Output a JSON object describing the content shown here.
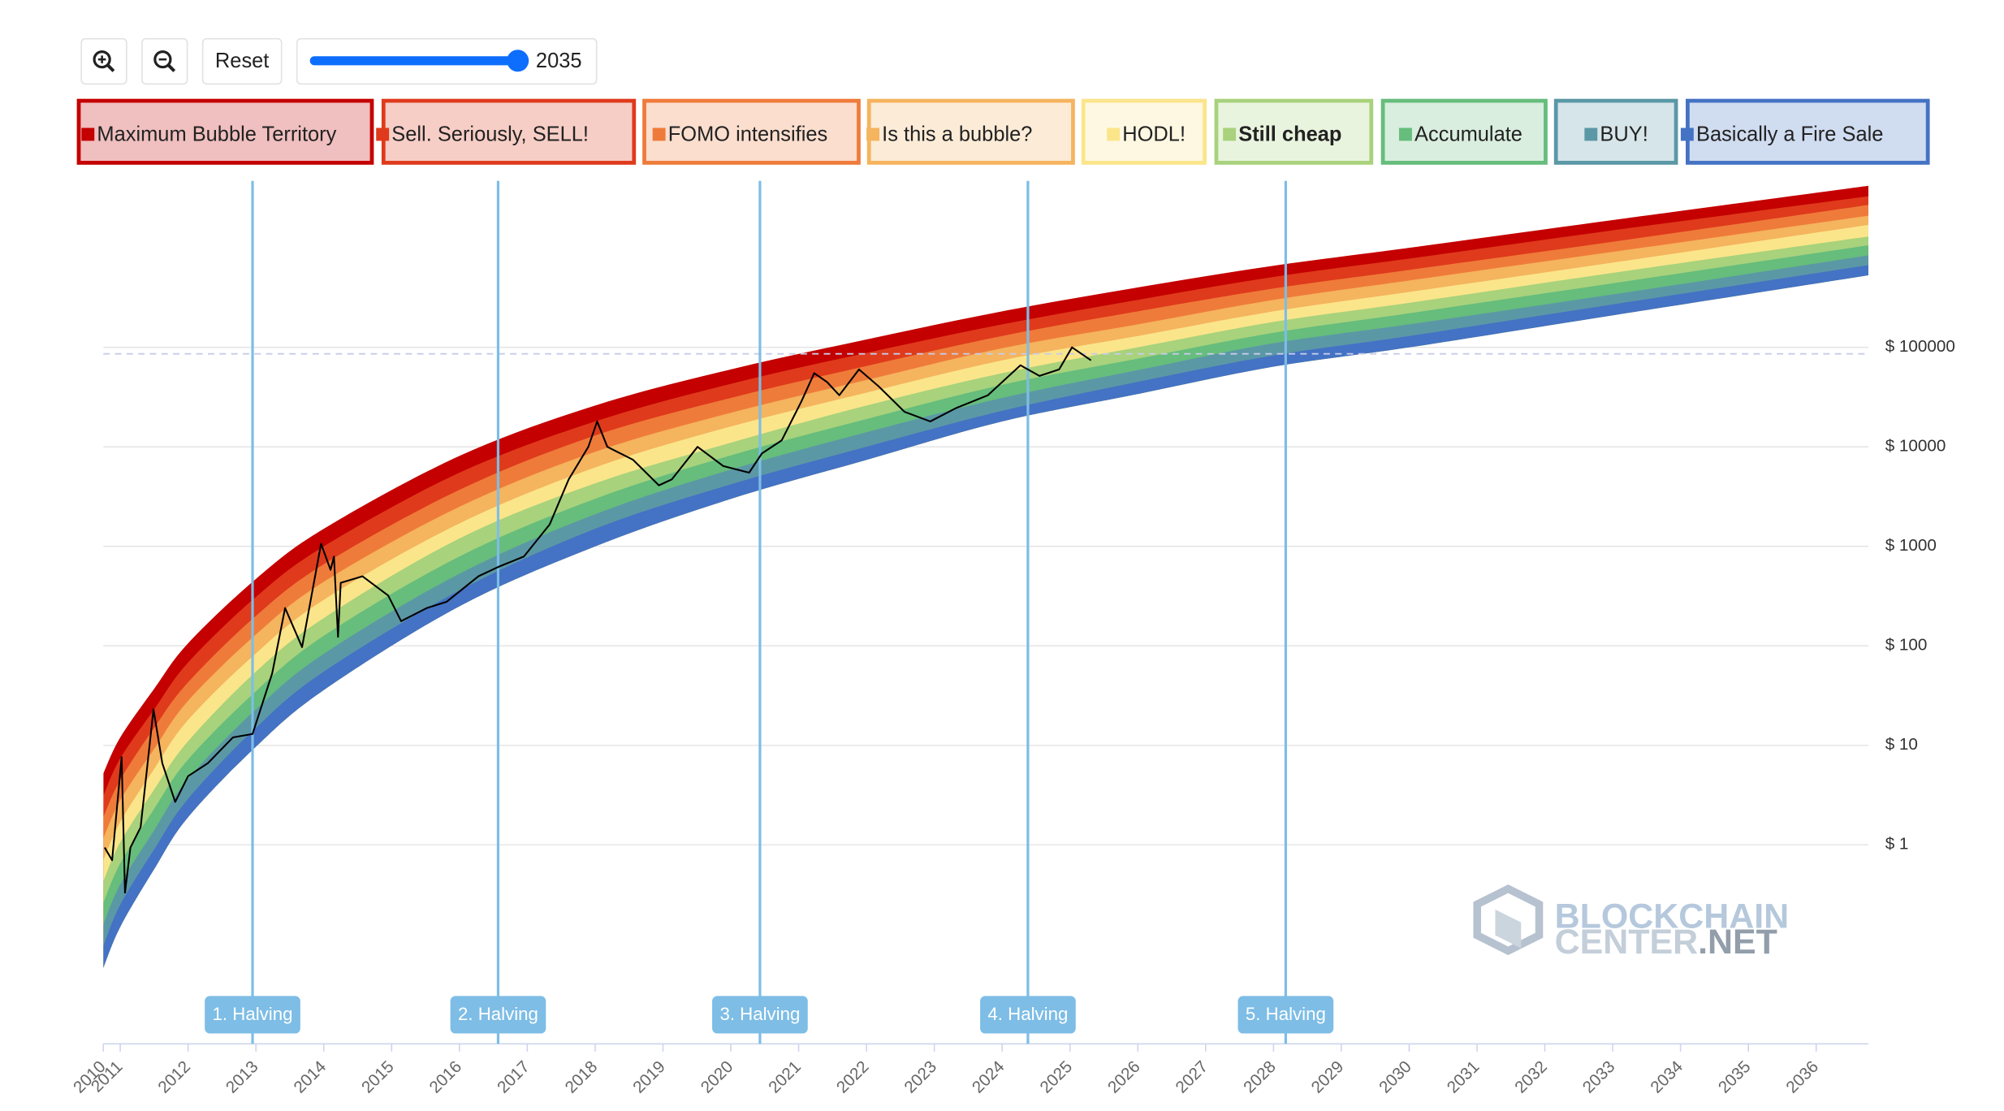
{
  "controls": {
    "reset": "Reset",
    "year": 2035
  },
  "chart_data": {
    "type": "line",
    "yscale": "log",
    "grid": true,
    "xlim": [
      2010.75,
      2036.77
    ],
    "ylim": [
      0.01,
      5000000
    ],
    "xticks": [
      {
        "value": 2010.75,
        "label": "2010"
      },
      2011,
      2012,
      2013,
      2014,
      2015,
      2016,
      2017,
      2018,
      2019,
      2020,
      2021,
      2022,
      2023,
      2024,
      2025,
      2026,
      2027,
      2028,
      2029,
      2030,
      2031,
      2032,
      2033,
      2034,
      2035,
      2036
    ],
    "yticks": [
      {
        "value": 1,
        "label": "$ 1"
      },
      {
        "value": 10,
        "label": "$ 10"
      },
      {
        "value": 100,
        "label": "$ 100"
      },
      {
        "value": 1000,
        "label": "$ 1000"
      },
      {
        "value": 10000,
        "label": "$ 10000"
      },
      {
        "value": 100000,
        "label": "$ 100000"
      }
    ],
    "rainbow": {
      "x": [
        2010.75,
        2011,
        2011.5,
        2012,
        2013,
        2014,
        2016,
        2018,
        2020,
        2022,
        2024,
        2026,
        2028,
        2030,
        2033,
        2036.77
      ],
      "series": [
        {
          "name": "Maximum Bubble Territory",
          "color": "#c40000",
          "values": [
            5.2,
            12,
            37,
            106,
            470,
            1500,
            8100,
            26000,
            60000,
            120000,
            230000,
            400000,
            660000,
            1000000,
            1900000,
            4200000
          ]
        },
        {
          "name": "Sell. Seriously, SELL!",
          "color": "#df3a1c",
          "values": [
            3.1,
            7.4,
            23,
            68,
            310,
            1000,
            5500,
            18000,
            43000,
            88000,
            170000,
            300000,
            510000,
            780000,
            1500000,
            3300000
          ]
        },
        {
          "name": "FOMO intensifies",
          "color": "#ef7b3a",
          "values": [
            1.9,
            4.5,
            15,
            43,
            200,
            660,
            3700,
            13000,
            31000,
            65000,
            130000,
            230000,
            390000,
            600000,
            1150000,
            2700000
          ]
        },
        {
          "name": "Is this a bubble?",
          "color": "#f5b45e",
          "values": [
            1.16,
            2.8,
            9.2,
            28,
            130,
            440,
            2500,
            8900,
            22000,
            47000,
            98000,
            170000,
            300000,
            470000,
            910000,
            2100000
          ]
        },
        {
          "name": "HODL!",
          "color": "#fbe58a",
          "values": [
            0.7,
            1.7,
            5.8,
            18,
            84,
            290,
            1700,
            6200,
            16000,
            35000,
            74000,
            130000,
            230000,
            360000,
            710000,
            1700000
          ]
        },
        {
          "name": "Still cheap",
          "color": "#a8d27c",
          "bold": true,
          "values": [
            0.43,
            1.06,
            3.6,
            11,
            55,
            190,
            1200,
            4300,
            11000,
            26000,
            55000,
            100000,
            180000,
            280000,
            560000,
            1300000
          ]
        },
        {
          "name": "Accumulate",
          "color": "#66bd7c",
          "values": [
            0.26,
            0.65,
            2.3,
            7.2,
            35,
            126,
            790,
            3000,
            8200,
            19000,
            42000,
            77000,
            140000,
            220000,
            440000,
            1060000
          ]
        },
        {
          "name": "BUY!",
          "color": "#5b98a6",
          "values": [
            0.158,
            0.4,
            1.4,
            4.6,
            23,
            83,
            530,
            2100,
            5900,
            14000,
            31000,
            59000,
            110000,
            170000,
            340000,
            840000
          ]
        },
        {
          "name": "Basically a Fire Sale",
          "color": "#4472c4",
          "values": [
            0.096,
            0.25,
            0.9,
            2.9,
            15,
            55,
            360,
            1500,
            4200,
            10000,
            23000,
            45000,
            83000,
            130000,
            270000,
            670000
          ]
        }
      ],
      "floor": [
        0.058,
        0.15,
        0.57,
        1.9,
        9.7,
        36,
        250,
        1000,
        3000,
        7400,
        18000,
        34000,
        64000,
        100000,
        210000,
        530000
      ]
    },
    "price": {
      "color": "#000000",
      "x": [
        2010.77,
        2010.88,
        2011.02,
        2011.07,
        2011.15,
        2011.3,
        2011.49,
        2011.62,
        2011.81,
        2012.0,
        2012.29,
        2012.66,
        2012.95,
        2013.24,
        2013.43,
        2013.68,
        2013.96,
        2014.1,
        2014.15,
        2014.21,
        2014.25,
        2014.57,
        2014.95,
        2015.14,
        2015.52,
        2015.81,
        2016.28,
        2016.57,
        2016.95,
        2017.33,
        2017.61,
        2017.9,
        2018.03,
        2018.18,
        2018.56,
        2018.94,
        2019.13,
        2019.51,
        2019.89,
        2020.27,
        2020.46,
        2020.75,
        2021.04,
        2021.23,
        2021.42,
        2021.6,
        2021.89,
        2022.18,
        2022.56,
        2022.94,
        2023.32,
        2023.79,
        2024.27,
        2024.55,
        2024.84,
        2025.03,
        2025.31
      ],
      "values": [
        0.94,
        0.7,
        7.6,
        0.33,
        0.94,
        1.5,
        23,
        6.6,
        2.7,
        4.9,
        6.6,
        12,
        13,
        53,
        240,
        97,
        1060,
        580,
        790,
        123,
        430,
        500,
        320,
        177,
        240,
        277,
        500,
        620,
        790,
        1660,
        4700,
        10000,
        18000,
        10000,
        7400,
        4100,
        4700,
        10000,
        6400,
        5500,
        8600,
        11600,
        28500,
        55000,
        44700,
        33000,
        60000,
        40500,
        22500,
        18000,
        24500,
        33000,
        66000,
        51600,
        60000,
        100000,
        74000
      ]
    },
    "reference_line": 86000,
    "halvings": {
      "color": "#7dbde6",
      "labels": [
        "1. Halving",
        "2. Halving",
        "3. Halving",
        "4. Halving",
        "5. Halving"
      ],
      "x": [
        2012.95,
        2016.57,
        2020.43,
        2024.38,
        2028.18
      ]
    },
    "watermark": [
      "BLOCKCHAIN",
      "CENTER",
      ".NET"
    ]
  }
}
